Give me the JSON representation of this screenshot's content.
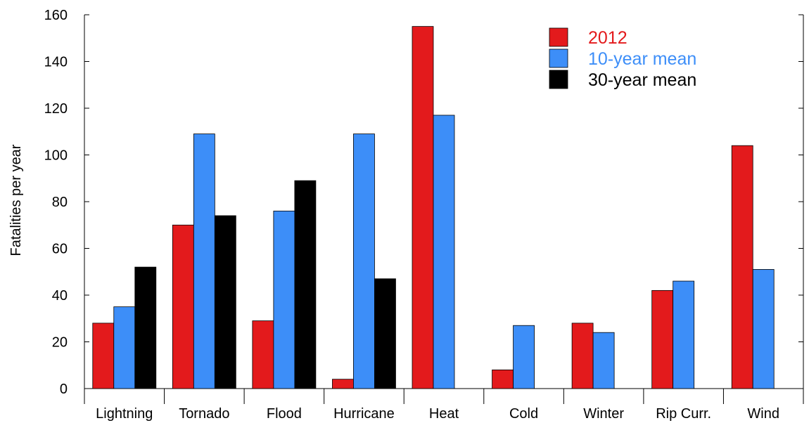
{
  "chart_data": {
    "type": "bar",
    "title": "",
    "xlabel": "",
    "ylabel": "Fatalities per year",
    "ylim": [
      0,
      160
    ],
    "yticks": [
      0,
      20,
      40,
      60,
      80,
      100,
      120,
      140,
      160
    ],
    "categories": [
      "Lightning",
      "Tornado",
      "Flood",
      "Hurricane",
      "Heat",
      "Cold",
      "Winter",
      "Rip Curr.",
      "Wind"
    ],
    "series": [
      {
        "name": "2012",
        "color": "#e31a1c",
        "values": [
          28,
          70,
          29,
          4,
          155,
          8,
          28,
          42,
          104
        ]
      },
      {
        "name": "10-year mean",
        "color": "#3d8ef8",
        "values": [
          35,
          109,
          76,
          109,
          117,
          27,
          24,
          46,
          51
        ]
      },
      {
        "name": "30-year mean",
        "color": "#000000",
        "values": [
          52,
          74,
          89,
          47,
          null,
          null,
          null,
          null,
          null
        ]
      }
    ],
    "legend_position": "top-right",
    "grid": false
  }
}
